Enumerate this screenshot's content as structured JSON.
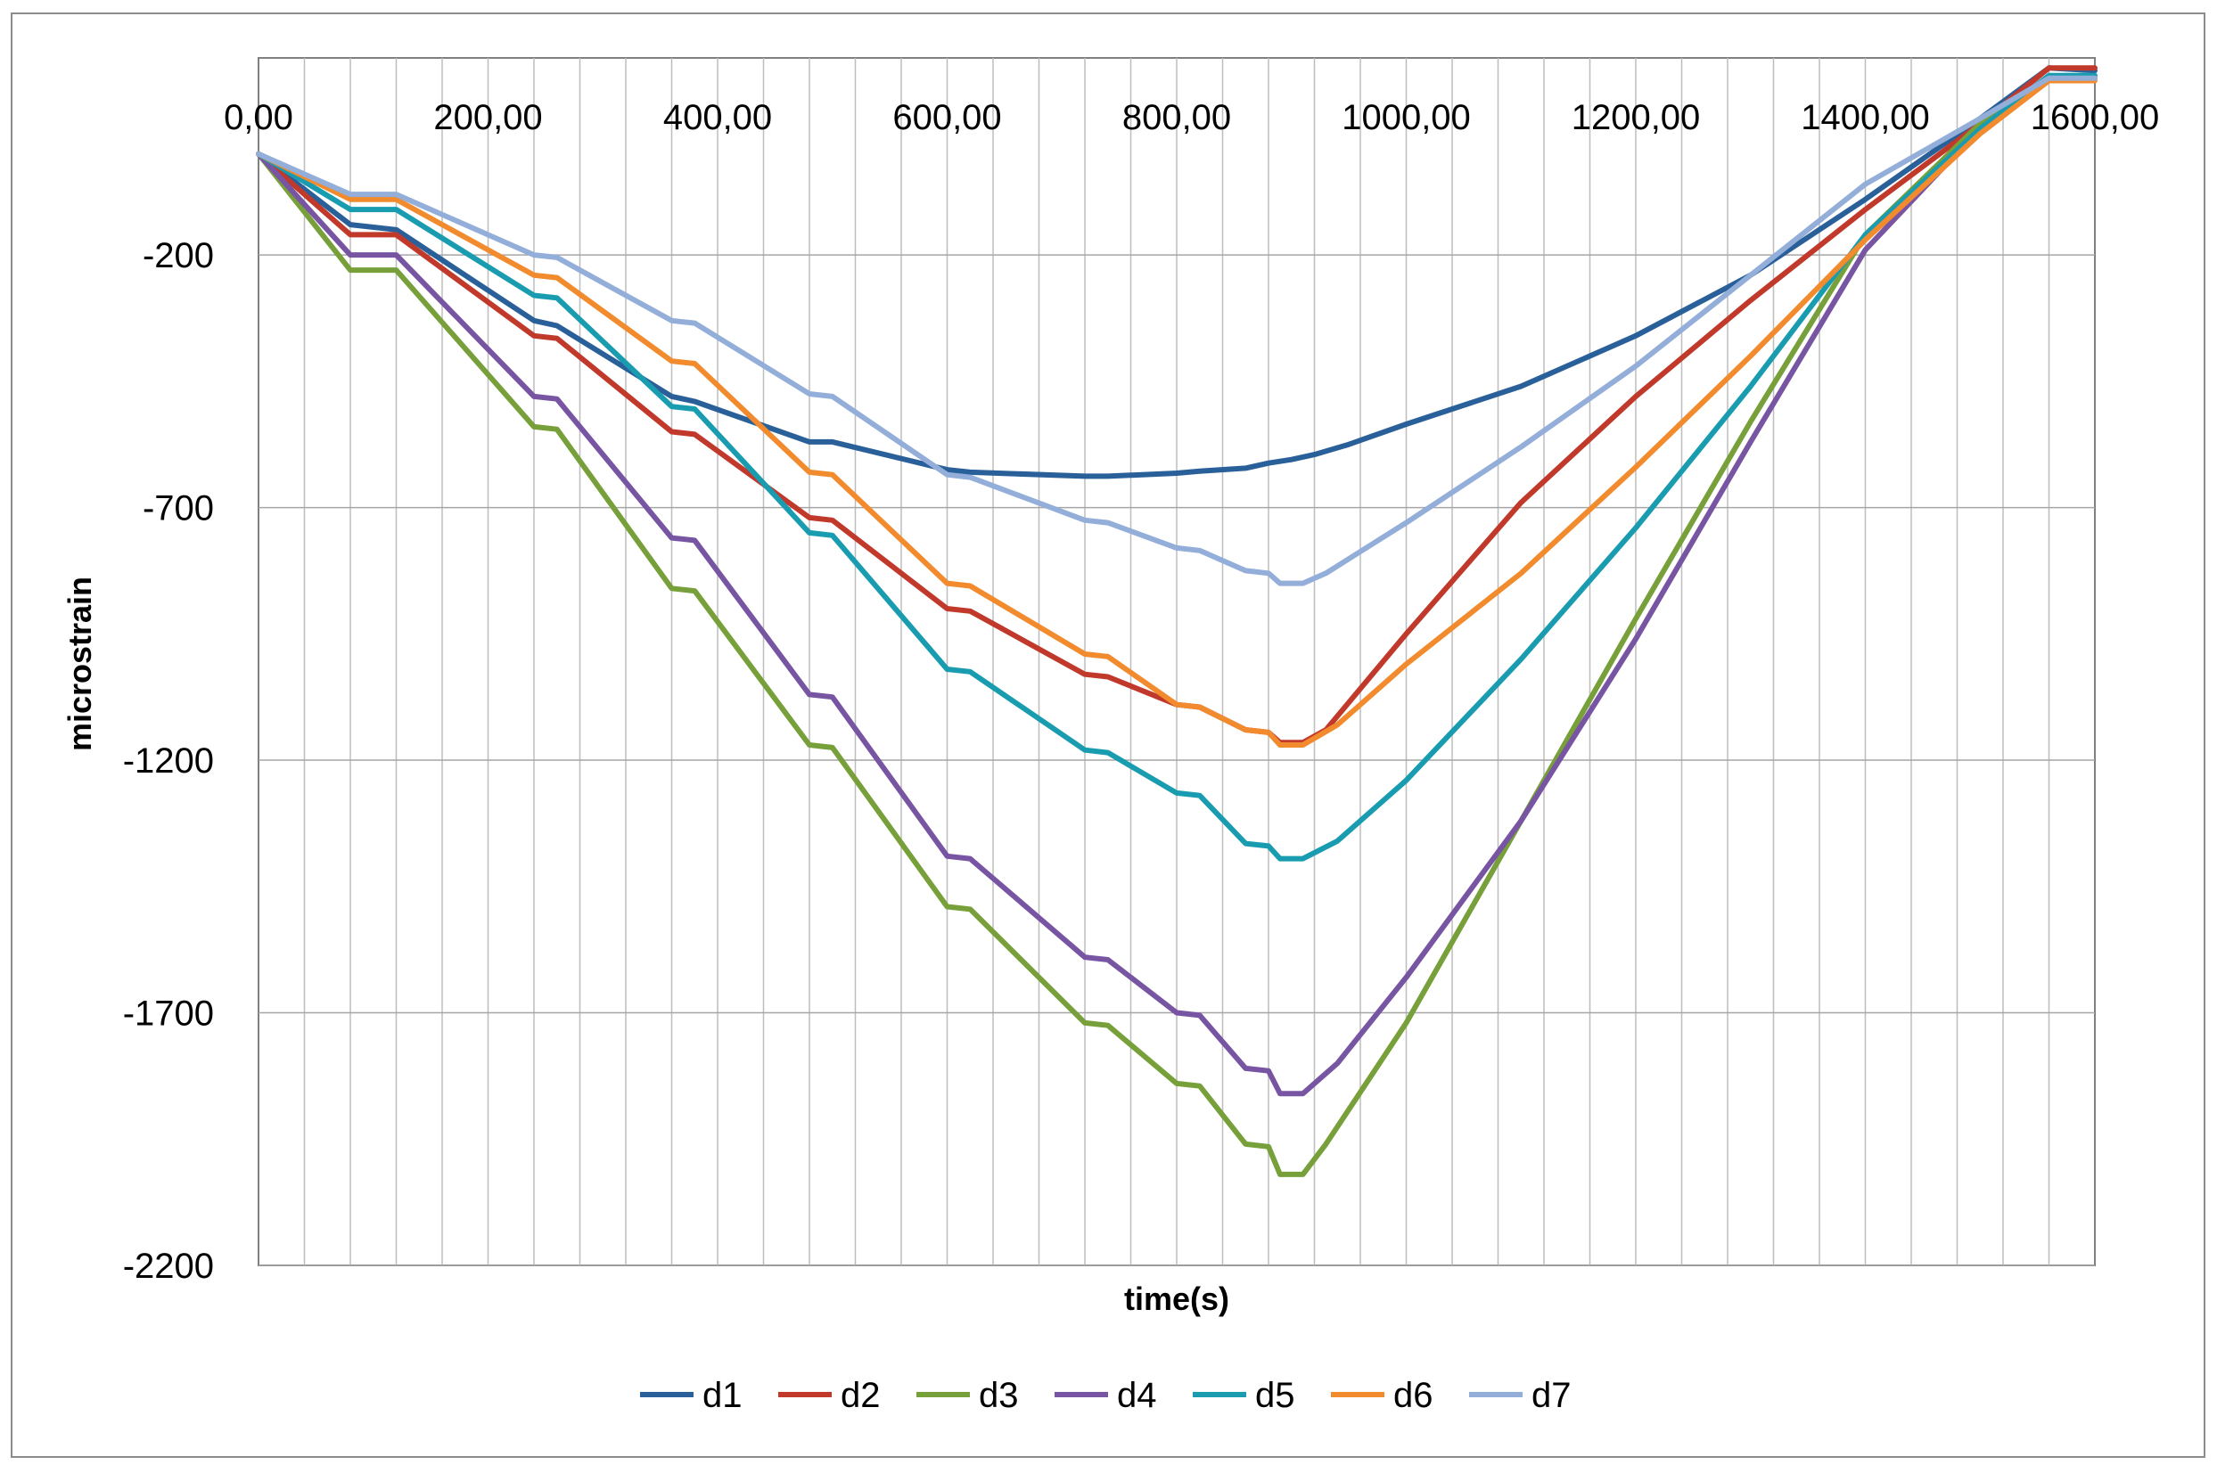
{
  "chart_data": {
    "type": "line",
    "title": "",
    "xlabel": "time(s)",
    "ylabel": "microstrain",
    "xlim": [
      0,
      1600
    ],
    "ylim": [
      -2200,
      190
    ],
    "x_ticks": [
      0,
      200,
      400,
      600,
      800,
      1000,
      1200,
      1400,
      1600
    ],
    "x_tick_labels": [
      "0,00",
      "200,00",
      "400,00",
      "600,00",
      "800,00",
      "1000,00",
      "1200,00",
      "1400,00",
      "1600,00"
    ],
    "y_ticks": [
      -200,
      -700,
      -1200,
      -1700,
      -2200
    ],
    "y_tick_labels": [
      "-200",
      "-700",
      "-1200",
      "-1700",
      "-2200"
    ],
    "x_minor_gridline_step": 40,
    "grid": true,
    "legend_position": "bottom",
    "series": [
      {
        "name": "d1",
        "color": "#2A6099",
        "points": [
          [
            0,
            0
          ],
          [
            80,
            -140
          ],
          [
            120,
            -150
          ],
          [
            240,
            -330
          ],
          [
            260,
            -340
          ],
          [
            360,
            -480
          ],
          [
            380,
            -490
          ],
          [
            480,
            -570
          ],
          [
            500,
            -570
          ],
          [
            600,
            -625
          ],
          [
            620,
            -630
          ],
          [
            720,
            -638
          ],
          [
            740,
            -638
          ],
          [
            800,
            -632
          ],
          [
            820,
            -628
          ],
          [
            860,
            -622
          ],
          [
            880,
            -612
          ],
          [
            900,
            -605
          ],
          [
            920,
            -595
          ],
          [
            950,
            -575
          ],
          [
            1000,
            -535
          ],
          [
            1100,
            -460
          ],
          [
            1200,
            -360
          ],
          [
            1300,
            -240
          ],
          [
            1400,
            -90
          ],
          [
            1500,
            70
          ],
          [
            1560,
            170
          ],
          [
            1600,
            165
          ]
        ]
      },
      {
        "name": "d2",
        "color": "#C0392B",
        "points": [
          [
            0,
            0
          ],
          [
            80,
            -160
          ],
          [
            120,
            -160
          ],
          [
            240,
            -360
          ],
          [
            260,
            -365
          ],
          [
            360,
            -550
          ],
          [
            380,
            -555
          ],
          [
            480,
            -720
          ],
          [
            500,
            -725
          ],
          [
            600,
            -900
          ],
          [
            620,
            -905
          ],
          [
            720,
            -1030
          ],
          [
            740,
            -1035
          ],
          [
            800,
            -1090
          ],
          [
            820,
            -1095
          ],
          [
            860,
            -1140
          ],
          [
            880,
            -1145
          ],
          [
            890,
            -1165
          ],
          [
            910,
            -1165
          ],
          [
            930,
            -1140
          ],
          [
            1000,
            -950
          ],
          [
            1100,
            -690
          ],
          [
            1200,
            -480
          ],
          [
            1300,
            -290
          ],
          [
            1400,
            -110
          ],
          [
            1500,
            60
          ],
          [
            1560,
            170
          ],
          [
            1600,
            170
          ]
        ]
      },
      {
        "name": "d3",
        "color": "#77A03A",
        "points": [
          [
            0,
            0
          ],
          [
            80,
            -230
          ],
          [
            120,
            -230
          ],
          [
            240,
            -540
          ],
          [
            260,
            -545
          ],
          [
            360,
            -860
          ],
          [
            380,
            -865
          ],
          [
            480,
            -1170
          ],
          [
            500,
            -1175
          ],
          [
            600,
            -1490
          ],
          [
            620,
            -1495
          ],
          [
            720,
            -1720
          ],
          [
            740,
            -1725
          ],
          [
            800,
            -1840
          ],
          [
            820,
            -1845
          ],
          [
            860,
            -1960
          ],
          [
            880,
            -1965
          ],
          [
            890,
            -2020
          ],
          [
            910,
            -2020
          ],
          [
            930,
            -1960
          ],
          [
            1000,
            -1720
          ],
          [
            1100,
            -1320
          ],
          [
            1200,
            -920
          ],
          [
            1300,
            -530
          ],
          [
            1400,
            -160
          ],
          [
            1500,
            60
          ],
          [
            1560,
            150
          ],
          [
            1600,
            150
          ]
        ]
      },
      {
        "name": "d4",
        "color": "#7855A3",
        "points": [
          [
            0,
            0
          ],
          [
            80,
            -200
          ],
          [
            120,
            -200
          ],
          [
            240,
            -480
          ],
          [
            260,
            -485
          ],
          [
            360,
            -760
          ],
          [
            380,
            -765
          ],
          [
            480,
            -1070
          ],
          [
            500,
            -1075
          ],
          [
            600,
            -1390
          ],
          [
            620,
            -1395
          ],
          [
            720,
            -1590
          ],
          [
            740,
            -1595
          ],
          [
            800,
            -1700
          ],
          [
            820,
            -1705
          ],
          [
            860,
            -1810
          ],
          [
            880,
            -1815
          ],
          [
            890,
            -1860
          ],
          [
            910,
            -1860
          ],
          [
            940,
            -1800
          ],
          [
            1000,
            -1630
          ],
          [
            1100,
            -1320
          ],
          [
            1200,
            -960
          ],
          [
            1300,
            -570
          ],
          [
            1400,
            -190
          ],
          [
            1500,
            50
          ],
          [
            1560,
            150
          ],
          [
            1600,
            150
          ]
        ]
      },
      {
        "name": "d5",
        "color": "#1A9CB0",
        "points": [
          [
            0,
            0
          ],
          [
            80,
            -110
          ],
          [
            120,
            -110
          ],
          [
            240,
            -280
          ],
          [
            260,
            -285
          ],
          [
            360,
            -500
          ],
          [
            380,
            -505
          ],
          [
            480,
            -750
          ],
          [
            500,
            -755
          ],
          [
            600,
            -1020
          ],
          [
            620,
            -1025
          ],
          [
            720,
            -1180
          ],
          [
            740,
            -1185
          ],
          [
            800,
            -1265
          ],
          [
            820,
            -1270
          ],
          [
            860,
            -1365
          ],
          [
            880,
            -1370
          ],
          [
            890,
            -1395
          ],
          [
            910,
            -1395
          ],
          [
            940,
            -1360
          ],
          [
            1000,
            -1240
          ],
          [
            1100,
            -1000
          ],
          [
            1200,
            -740
          ],
          [
            1300,
            -460
          ],
          [
            1400,
            -160
          ],
          [
            1500,
            50
          ],
          [
            1560,
            155
          ],
          [
            1600,
            155
          ]
        ]
      },
      {
        "name": "d6",
        "color": "#F28A2E",
        "points": [
          [
            0,
            0
          ],
          [
            80,
            -90
          ],
          [
            120,
            -90
          ],
          [
            240,
            -240
          ],
          [
            260,
            -245
          ],
          [
            360,
            -410
          ],
          [
            380,
            -415
          ],
          [
            480,
            -630
          ],
          [
            500,
            -635
          ],
          [
            600,
            -850
          ],
          [
            620,
            -855
          ],
          [
            720,
            -990
          ],
          [
            740,
            -995
          ],
          [
            800,
            -1090
          ],
          [
            820,
            -1095
          ],
          [
            860,
            -1140
          ],
          [
            880,
            -1145
          ],
          [
            890,
            -1170
          ],
          [
            910,
            -1170
          ],
          [
            940,
            -1130
          ],
          [
            1000,
            -1010
          ],
          [
            1100,
            -830
          ],
          [
            1200,
            -620
          ],
          [
            1300,
            -400
          ],
          [
            1400,
            -170
          ],
          [
            1500,
            40
          ],
          [
            1560,
            145
          ],
          [
            1600,
            145
          ]
        ]
      },
      {
        "name": "d7",
        "color": "#94AEDA",
        "points": [
          [
            0,
            0
          ],
          [
            80,
            -80
          ],
          [
            120,
            -80
          ],
          [
            240,
            -200
          ],
          [
            260,
            -205
          ],
          [
            360,
            -330
          ],
          [
            380,
            -335
          ],
          [
            480,
            -475
          ],
          [
            500,
            -480
          ],
          [
            600,
            -635
          ],
          [
            620,
            -640
          ],
          [
            720,
            -725
          ],
          [
            740,
            -730
          ],
          [
            800,
            -780
          ],
          [
            820,
            -785
          ],
          [
            860,
            -825
          ],
          [
            880,
            -830
          ],
          [
            890,
            -850
          ],
          [
            910,
            -850
          ],
          [
            930,
            -830
          ],
          [
            1000,
            -730
          ],
          [
            1100,
            -580
          ],
          [
            1200,
            -420
          ],
          [
            1300,
            -240
          ],
          [
            1400,
            -60
          ],
          [
            1500,
            70
          ],
          [
            1560,
            150
          ],
          [
            1600,
            150
          ]
        ]
      }
    ]
  }
}
